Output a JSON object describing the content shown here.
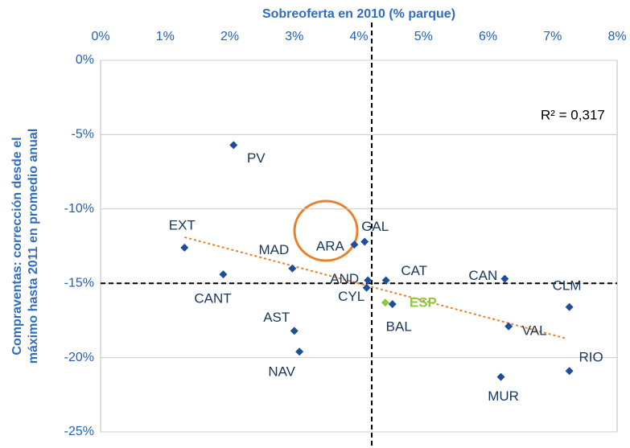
{
  "chart_data": {
    "type": "scatter",
    "x_title": "Sobreoferta en 2010 (% parque)",
    "y_title": [
      "Compraventas: corrección desde el",
      "máximo hasta 2011 en promedio anual"
    ],
    "annotation": "R² = 0,317",
    "labels": [
      "PV",
      "EXT",
      "MAD",
      "CANT",
      "ARA",
      "GAL",
      "AND",
      "CYL",
      "CAT",
      "ESP",
      "BAL",
      "CAN",
      "CLM",
      "VAL",
      "AST",
      "NAV",
      "MUR",
      "RIO"
    ],
    "x": [
      2.06,
      1.3,
      2.97,
      1.9,
      3.93,
      4.09,
      4.14,
      4.12,
      4.42,
      4.41,
      4.52,
      6.26,
      7.26,
      6.32,
      3.0,
      3.08,
      6.2,
      7.26
    ],
    "values": [
      -5.7,
      -12.6,
      -14.0,
      -14.4,
      -12.4,
      -12.2,
      -14.8,
      -15.3,
      -14.8,
      -16.3,
      -16.4,
      -14.7,
      -16.6,
      -17.9,
      -18.2,
      -19.6,
      -21.3,
      -20.9
    ],
    "color": "#1F4E99",
    "colors": [
      "#1F4E99",
      "#1F4E99",
      "#1F4E99",
      "#1F4E99",
      "#1F4E99",
      "#1F4E99",
      "#1F4E99",
      "#1F4E99",
      "#1F4E99",
      "#8DC63F",
      "#1F4E99",
      "#1F4E99",
      "#1F4E99",
      "#1F4E99",
      "#1F4E99",
      "#1F4E99",
      "#1F4E99",
      "#1F4E99"
    ],
    "trendline": {
      "x": [
        1.3,
        7.2
      ],
      "y": [
        -11.9,
        -18.7
      ],
      "color": "#E8822A"
    },
    "reference_lines": {
      "x": 4.2,
      "y": -15
    },
    "xlim": [
      0,
      8
    ],
    "xticks": [
      {
        "value": 0,
        "label": "0%"
      },
      {
        "value": 1,
        "label": "1%"
      },
      {
        "value": 2,
        "label": "2%"
      },
      {
        "value": 3,
        "label": "3%"
      },
      {
        "value": 4,
        "label": "4%"
      },
      {
        "value": 5,
        "label": "5%"
      },
      {
        "value": 6,
        "label": "6%"
      },
      {
        "value": 7,
        "label": "7%"
      },
      {
        "value": 8,
        "label": "8%"
      }
    ],
    "ylim": [
      -25,
      0
    ],
    "yticks": [
      {
        "value": 0,
        "label": "0%"
      },
      {
        "value": -5,
        "label": "-5%"
      },
      {
        "value": -10,
        "label": "-10%"
      },
      {
        "value": -15,
        "label": "-15%"
      },
      {
        "value": -20,
        "label": "-20%"
      },
      {
        "value": -25,
        "label": "-25%"
      }
    ],
    "grid": true
  }
}
